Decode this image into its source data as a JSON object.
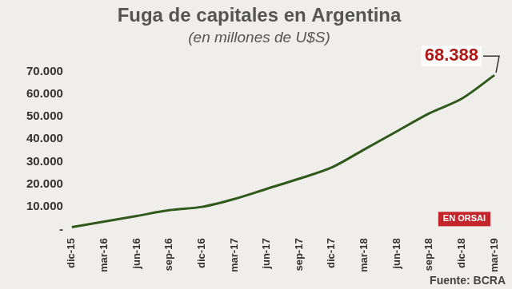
{
  "chart_data": {
    "type": "line",
    "title": "Fuga de capitales en Argentina",
    "subtitle": "(en millones de U$S)",
    "categories": [
      "dic-15",
      "mar-16",
      "jun-16",
      "sep-16",
      "dic-16",
      "mar-17",
      "jun-17",
      "sep-17",
      "dic-17",
      "mar-18",
      "jun-18",
      "sep-18",
      "dic-18",
      "mar-19"
    ],
    "values": [
      1000,
      3500,
      6000,
      8500,
      10000,
      13500,
      18000,
      22500,
      27500,
      35500,
      43500,
      51500,
      58000,
      68388
    ],
    "color": "#2f5a1c",
    "ylim": [
      0,
      70000
    ],
    "yticks": [
      {
        "value": 0,
        "label": "-"
      },
      {
        "value": 10000,
        "label": "10.000"
      },
      {
        "value": 20000,
        "label": "20.000"
      },
      {
        "value": 30000,
        "label": "30.000"
      },
      {
        "value": 40000,
        "label": "40.000"
      },
      {
        "value": 50000,
        "label": "50.000"
      },
      {
        "value": 60000,
        "label": "60.000"
      },
      {
        "value": 70000,
        "label": "70.000"
      }
    ],
    "grid": false,
    "annotations": [
      {
        "text": "68.388",
        "x": "mar-19",
        "y": 68388
      }
    ],
    "badge": "EN ORSAI",
    "source": "Fuente: BCRA"
  }
}
